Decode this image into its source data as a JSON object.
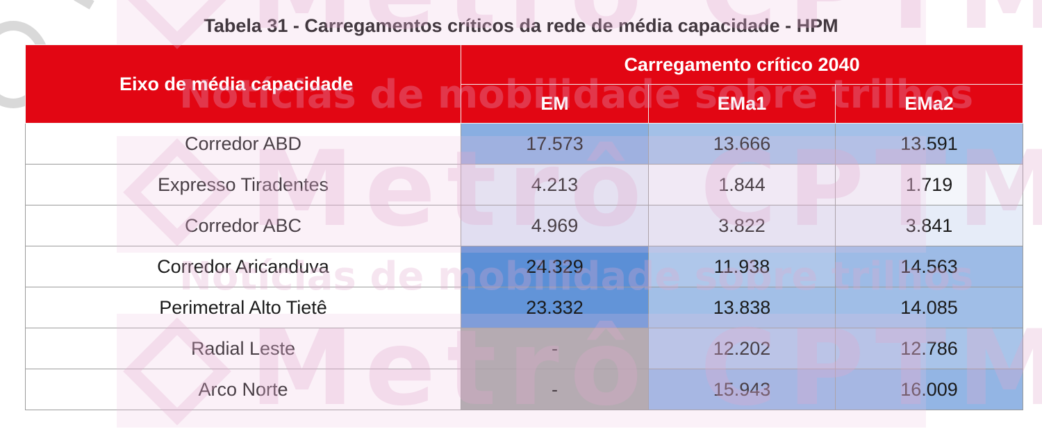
{
  "caption": "Tabela 31 - Carregamentos críticos da rede de média capacidade - HPM",
  "header": {
    "row_label": "Eixo de média capacidade",
    "group_label": "Carregamento crítico 2040",
    "scenarios": [
      "EM",
      "EMa1",
      "EMa2"
    ]
  },
  "rows": [
    {
      "name": "Corredor ABD",
      "values": [
        "17.573",
        "13.666",
        "13.591"
      ]
    },
    {
      "name": "Expresso Tiradentes",
      "values": [
        "4.213",
        "1.844",
        "1.719"
      ]
    },
    {
      "name": "Corredor ABC",
      "values": [
        "4.969",
        "3.822",
        "3.841"
      ]
    },
    {
      "name": "Corredor Aricanduva",
      "values": [
        "24.329",
        "11.938",
        "14.563"
      ]
    },
    {
      "name": "Perimetral Alto Tietê",
      "values": [
        "23.332",
        "13.838",
        "14.085"
      ]
    },
    {
      "name": "Radial Leste",
      "values": [
        "-",
        "12.202",
        "12.786"
      ]
    },
    {
      "name": "Arco Norte",
      "values": [
        "-",
        "15.943",
        "16.009"
      ]
    }
  ],
  "watermark": {
    "brand": "Metrô CPTM",
    "tagline": "Notícias de mobilidade sobre trilhos"
  },
  "colors": {
    "header_red": "#e20613",
    "heat_high": "#5b8fd6",
    "heat_low": "#f4f6fb",
    "no_value": "#a6a6a6"
  }
}
